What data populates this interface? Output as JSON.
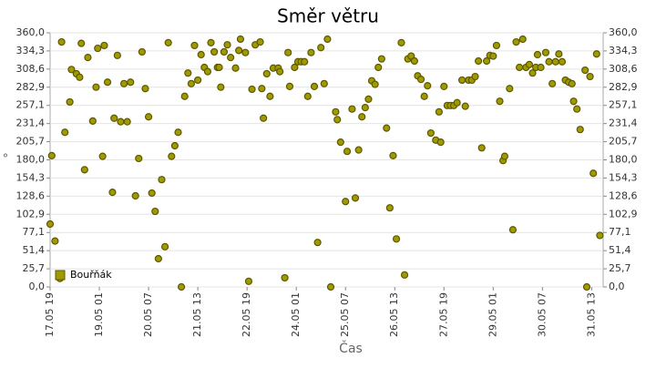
{
  "chart_data": {
    "type": "scatter",
    "title": "Směr větru",
    "xlabel": "Čas",
    "ylabel": "°",
    "legend": "lower left",
    "grid": true,
    "series": [
      {
        "name": "Bouřňák",
        "color": "#a09a00",
        "x": [
          "17.05 19",
          "17.05 20",
          "17.05 22",
          "18.05 01",
          "18.05 02",
          "18.05 04",
          "18.05 07",
          "18.05 08",
          "18.05 11",
          "18.05 13",
          "18.05 14",
          "18.05 16",
          "18.05 18",
          "18.05 21",
          "18.05 23",
          "19.05 00",
          "19.05 03",
          "19.05 04",
          "19.05 06",
          "19.05 09",
          "19.05 10",
          "19.05 12",
          "19.05 14",
          "19.05 16",
          "19.05 18",
          "19.05 20",
          "19.05 23",
          "20.05 01",
          "20.05 03",
          "20.05 05",
          "20.05 07",
          "20.05 09",
          "20.05 11",
          "20.05 13",
          "20.05 15",
          "20.05 17",
          "20.05 19",
          "20.05 21",
          "20.05 23",
          "21.05 01",
          "21.05 03",
          "21.05 05",
          "21.05 07",
          "21.05 09",
          "21.05 11",
          "21.05 13",
          "21.05 15",
          "21.05 17",
          "21.05 19",
          "21.05 21",
          "21.05 23",
          "22.05 01",
          "22.05 02",
          "22.05 03",
          "22.05 05",
          "22.05 07",
          "22.05 09",
          "22.05 12",
          "22.05 14",
          "22.05 15",
          "22.05 18",
          "22.05 20",
          "22.05 22",
          "23.05 00",
          "23.05 03",
          "23.05 04",
          "23.05 05",
          "23.05 07",
          "23.05 09",
          "23.05 11",
          "23.05 14",
          "23.05 15",
          "23.05 18",
          "23.05 20",
          "23.05 21",
          "24.05 00",
          "24.05 02",
          "24.05 04",
          "24.05 06",
          "24.05 08",
          "24.05 10",
          "24.05 12",
          "24.05 14",
          "24.05 16",
          "24.05 18",
          "24.05 20",
          "24.05 22",
          "25.05 01",
          "25.05 02",
          "25.05 04",
          "25.05 07",
          "25.05 08",
          "25.05 11",
          "25.05 13",
          "25.05 15",
          "25.05 17",
          "25.05 19",
          "25.05 21",
          "25.05 23",
          "26.05 01",
          "26.05 03",
          "26.05 05",
          "26.05 08",
          "26.05 10",
          "26.05 12",
          "26.05 14",
          "26.05 17",
          "26.05 19",
          "26.05 21",
          "26.05 23",
          "27.05 01",
          "27.05 03",
          "27.05 05",
          "27.05 07",
          "27.05 09",
          "27.05 11",
          "27.05 14",
          "27.05 16",
          "27.05 17",
          "27.05 19",
          "27.05 21",
          "27.05 23",
          "28.05 01",
          "28.05 03",
          "28.05 06",
          "28.05 08",
          "28.05 10",
          "28.05 12",
          "28.05 14",
          "28.05 16",
          "28.05 18",
          "28.05 21",
          "28.05 23",
          "29.05 01",
          "29.05 03",
          "29.05 05",
          "29.05 07",
          "29.05 08",
          "29.05 11",
          "29.05 13",
          "29.05 15",
          "29.05 17",
          "29.05 19",
          "29.05 21",
          "29.05 23",
          "30.05 01",
          "30.05 03",
          "30.05 04",
          "30.05 06",
          "30.05 09",
          "30.05 11",
          "30.05 13",
          "30.05 15",
          "30.05 17",
          "30.05 19",
          "30.05 21",
          "30.05 23",
          "31.05 01",
          "31.05 02",
          "31.05 04",
          "31.05 06",
          "31.05 09",
          "31.05 10",
          "31.05 12",
          "31.05 14",
          "31.05 16",
          "31.05 18"
        ],
        "values": [
          89,
          186,
          65,
          12,
          347,
          219,
          262,
          308,
          302,
          297,
          345,
          166,
          325,
          235,
          283,
          338,
          185,
          342,
          290,
          134,
          239,
          328,
          234,
          288,
          234,
          290,
          129,
          182,
          333,
          281,
          241,
          133,
          107,
          40,
          152,
          57,
          346,
          185,
          200,
          219,
          0,
          270,
          303,
          288,
          342,
          293,
          329,
          311,
          305,
          346,
          333,
          311,
          311,
          283,
          333,
          343,
          325,
          310,
          335,
          351,
          332,
          8,
          280,
          343,
          347,
          281,
          239,
          302,
          270,
          310,
          310,
          305,
          13,
          332,
          284,
          311,
          319,
          319,
          319,
          270,
          332,
          284,
          63,
          339,
          288,
          351,
          0,
          248,
          237,
          205,
          121,
          192,
          252,
          126,
          194,
          241,
          254,
          266,
          292,
          287,
          311,
          323,
          225,
          112,
          186,
          68,
          346,
          17,
          323,
          327,
          320,
          299,
          294,
          270,
          285,
          218,
          208,
          248,
          205,
          284,
          257,
          257,
          257,
          261,
          293,
          256,
          293,
          293,
          298,
          320,
          197,
          320,
          328,
          327,
          342,
          263,
          179,
          185,
          281,
          81,
          347,
          311,
          351,
          311,
          315,
          303,
          311,
          329,
          311,
          332,
          319,
          288,
          319,
          330,
          319,
          293,
          290,
          288,
          263,
          252,
          223,
          307,
          0,
          298,
          161,
          330,
          73
        ]
      }
    ],
    "xlim": [
      "17.05 19",
      "31.05 20"
    ],
    "xticks": [
      "17.05 19",
      "19.05 01",
      "20.05 07",
      "21.05 13",
      "22.05 19",
      "24.05 01",
      "25.05 07",
      "26.05 13",
      "27.05 19",
      "29.05 01",
      "30.05 07",
      "31.05 13"
    ],
    "ylim": [
      0,
      360
    ],
    "yticks": [
      {
        "value": 0,
        "label": "0,0"
      },
      {
        "value": 25.7,
        "label": "25,7"
      },
      {
        "value": 51.4,
        "label": "51,4"
      },
      {
        "value": 77.1,
        "label": "77,1"
      },
      {
        "value": 102.9,
        "label": "102,9"
      },
      {
        "value": 128.6,
        "label": "128,6"
      },
      {
        "value": 154.3,
        "label": "154,3"
      },
      {
        "value": 180,
        "label": "180,0"
      },
      {
        "value": 205.7,
        "label": "205,7"
      },
      {
        "value": 231.4,
        "label": "231,4"
      },
      {
        "value": 257.1,
        "label": "257,1"
      },
      {
        "value": 282.9,
        "label": "282,9"
      },
      {
        "value": 308.6,
        "label": "308,6"
      },
      {
        "value": 334.3,
        "label": "334,3"
      },
      {
        "value": 360,
        "label": "360,0"
      }
    ]
  }
}
